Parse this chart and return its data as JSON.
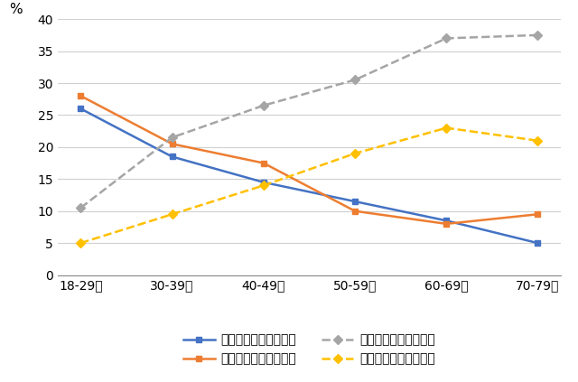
{
  "categories": [
    "18-29歳",
    "30-39歳",
    "40-49歳",
    "50-59歳",
    "60-69歳",
    "70-79歳"
  ],
  "series": [
    {
      "label": "低リテラシー（男性）",
      "values": [
        26,
        18.5,
        14.5,
        11.5,
        8.5,
        5
      ],
      "color": "#4472C4",
      "linestyle": "-",
      "marker": "s",
      "markersize": 5,
      "linewidth": 1.8
    },
    {
      "label": "低リテラシー（女性）",
      "values": [
        28,
        20.5,
        17.5,
        10,
        8,
        9.5
      ],
      "color": "#ED7D31",
      "linestyle": "-",
      "marker": "s",
      "markersize": 5,
      "linewidth": 1.8
    },
    {
      "label": "高リテラシー（男性）",
      "values": [
        10.5,
        21.5,
        26.5,
        30.5,
        37,
        37.5
      ],
      "color": "#A5A5A5",
      "linestyle": "--",
      "marker": "D",
      "markersize": 5,
      "linewidth": 1.8
    },
    {
      "label": "高リテラシー（女性）",
      "values": [
        5,
        9.5,
        14,
        19,
        23,
        21
      ],
      "color": "#FFC000",
      "linestyle": "--",
      "marker": "D",
      "markersize": 5,
      "linewidth": 1.8
    }
  ],
  "ylabel": "%",
  "ylim": [
    0,
    40
  ],
  "yticks": [
    0,
    5,
    10,
    15,
    20,
    25,
    30,
    35,
    40
  ],
  "grid_color": "#D0D0D0",
  "background_color": "#FFFFFF",
  "figsize": [
    6.4,
    4.23
  ],
  "dpi": 100,
  "tick_fontsize": 10,
  "legend_fontsize": 10
}
